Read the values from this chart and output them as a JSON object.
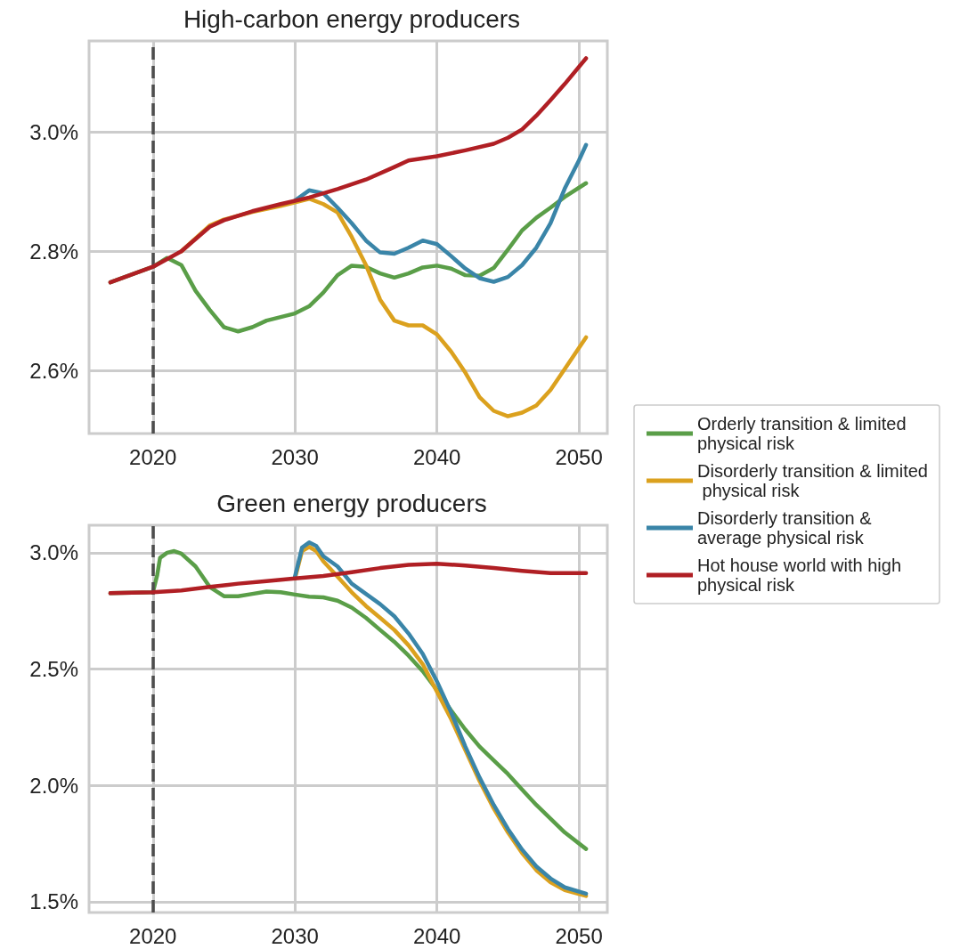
{
  "chart_data": [
    {
      "type": "line",
      "title": "High-carbon energy producers",
      "xlim": [
        2015.5,
        2052
      ],
      "xticks": [
        2020,
        2030,
        2040,
        2050
      ],
      "ylim": [
        2.495,
        3.152
      ],
      "yticks": [
        {
          "value": 2.6,
          "label": "2.6%"
        },
        {
          "value": 2.8,
          "label": "2.8%"
        },
        {
          "value": 3.0,
          "label": "3.0%"
        }
      ],
      "grid": true,
      "legend": false,
      "marker": "none",
      "line_style": "solid",
      "ref_lines": [
        {
          "axis": "x",
          "value": 2020,
          "line_style": "dashed",
          "color": "#4d4d4d"
        }
      ],
      "series": [
        {
          "color": "#5a9e48",
          "x": [
            2017,
            2020,
            2021,
            2022,
            2023,
            2024,
            2025,
            2026,
            2027,
            2028,
            2029,
            2030,
            2031,
            2032,
            2033,
            2034,
            2035,
            2036,
            2037,
            2038,
            2039,
            2040,
            2041,
            2042,
            2043,
            2044,
            2045,
            2046,
            2047,
            2048,
            2049,
            2050.5
          ],
          "values": [
            2.748,
            2.774,
            2.789,
            2.777,
            2.734,
            2.702,
            2.673,
            2.666,
            2.673,
            2.684,
            2.69,
            2.696,
            2.708,
            2.731,
            2.76,
            2.776,
            2.774,
            2.763,
            2.756,
            2.763,
            2.773,
            2.776,
            2.771,
            2.76,
            2.759,
            2.772,
            2.803,
            2.835,
            2.856,
            2.873,
            2.891,
            2.914
          ]
        },
        {
          "color": "#dba11e",
          "x": [
            2022,
            2024,
            2025,
            2027,
            2029,
            2030,
            2031,
            2032,
            2033,
            2034,
            2035,
            2036,
            2037,
            2038,
            2039,
            2040,
            2041,
            2042,
            2043,
            2044,
            2045,
            2046,
            2047,
            2048,
            2049,
            2050.5
          ],
          "values": [
            2.8,
            2.843,
            2.853,
            2.866,
            2.876,
            2.882,
            2.888,
            2.879,
            2.865,
            2.824,
            2.777,
            2.719,
            2.684,
            2.676,
            2.676,
            2.661,
            2.632,
            2.597,
            2.556,
            2.533,
            2.524,
            2.53,
            2.542,
            2.568,
            2.603,
            2.656
          ]
        },
        {
          "color": "#3a85a8",
          "x": [
            2030,
            2031,
            2032,
            2033,
            2034,
            2035,
            2036,
            2037,
            2038,
            2039,
            2040,
            2041,
            2042,
            2043,
            2044,
            2045,
            2046,
            2047,
            2048,
            2049,
            2050,
            2050.5
          ],
          "values": [
            2.885,
            2.902,
            2.897,
            2.873,
            2.847,
            2.818,
            2.798,
            2.796,
            2.806,
            2.818,
            2.812,
            2.792,
            2.771,
            2.755,
            2.749,
            2.757,
            2.777,
            2.806,
            2.847,
            2.905,
            2.952,
            2.978
          ]
        },
        {
          "color": "#b01f24",
          "x": [
            2017,
            2020,
            2022,
            2024,
            2025,
            2027,
            2029,
            2031,
            2033,
            2035,
            2037,
            2038,
            2040,
            2042,
            2044,
            2045,
            2046,
            2047,
            2048,
            2049,
            2050.5
          ],
          "values": [
            2.748,
            2.774,
            2.8,
            2.841,
            2.852,
            2.867,
            2.879,
            2.89,
            2.904,
            2.92,
            2.941,
            2.952,
            2.959,
            2.969,
            2.98,
            2.99,
            3.004,
            3.027,
            3.053,
            3.08,
            3.123
          ]
        }
      ]
    },
    {
      "type": "line",
      "title": "Green energy producers",
      "xlim": [
        2015.5,
        2052
      ],
      "xticks": [
        2020,
        2030,
        2040,
        2050
      ],
      "ylim": [
        1.454,
        3.118
      ],
      "yticks": [
        {
          "value": 1.5,
          "label": "1.5%"
        },
        {
          "value": 2.0,
          "label": "2.0%"
        },
        {
          "value": 2.5,
          "label": "2.5%"
        },
        {
          "value": 3.0,
          "label": "3.0%"
        }
      ],
      "grid": true,
      "legend": "right",
      "marker": "none",
      "line_style": "solid",
      "ref_lines": [
        {
          "axis": "x",
          "value": 2020,
          "line_style": "dashed",
          "color": "#4d4d4d"
        }
      ],
      "series": [
        {
          "name": "Orderly transition & limited physical risk",
          "color": "#5a9e48",
          "x": [
            2017,
            2020,
            2020.3,
            2020.5,
            2021,
            2021.5,
            2022,
            2023,
            2024,
            2025,
            2026,
            2027,
            2028,
            2029,
            2030,
            2031,
            2032,
            2033,
            2034,
            2035,
            2036,
            2037,
            2038,
            2039,
            2040,
            2041,
            2042,
            2043,
            2044,
            2045,
            2046,
            2047,
            2048,
            2049,
            2050.5
          ],
          "values": [
            2.826,
            2.83,
            2.904,
            2.978,
            3.0,
            3.007,
            2.996,
            2.941,
            2.853,
            2.813,
            2.813,
            2.823,
            2.833,
            2.83,
            2.82,
            2.811,
            2.808,
            2.794,
            2.764,
            2.72,
            2.668,
            2.617,
            2.558,
            2.491,
            2.41,
            2.322,
            2.24,
            2.167,
            2.108,
            2.049,
            1.982,
            1.916,
            1.857,
            1.798,
            1.727
          ]
        },
        {
          "name": "Disorderly transition & limited physical risk",
          "color": "#dba11e",
          "x": [
            2030,
            2030.5,
            2031,
            2031.5,
            2032,
            2033,
            2034,
            2035,
            2036,
            2037,
            2038,
            2039,
            2040,
            2041,
            2042,
            2043,
            2044,
            2045,
            2046,
            2047,
            2048,
            2049,
            2050.5
          ],
          "values": [
            2.889,
            3.007,
            3.025,
            3.007,
            2.963,
            2.897,
            2.83,
            2.771,
            2.72,
            2.668,
            2.602,
            2.521,
            2.403,
            2.285,
            2.152,
            2.019,
            1.901,
            1.798,
            1.709,
            1.636,
            1.584,
            1.55,
            1.525
          ]
        },
        {
          "name": "Disorderly transition & average physical risk",
          "color": "#3a85a8",
          "x": [
            2030,
            2030.5,
            2031,
            2031.5,
            2032,
            2033,
            2034,
            2035,
            2036,
            2037,
            2038,
            2039,
            2040,
            2041,
            2042,
            2043,
            2044,
            2045,
            2046,
            2047,
            2048,
            2049,
            2050.5
          ],
          "values": [
            2.897,
            3.022,
            3.044,
            3.029,
            2.985,
            2.941,
            2.867,
            2.823,
            2.779,
            2.727,
            2.653,
            2.565,
            2.447,
            2.314,
            2.167,
            2.034,
            1.916,
            1.813,
            1.724,
            1.652,
            1.6,
            1.562,
            1.535
          ]
        },
        {
          "name": "Hot house world with high physical risk",
          "color": "#b01f24",
          "x": [
            2017,
            2020,
            2022,
            2024,
            2026,
            2028,
            2030,
            2032,
            2034,
            2036,
            2038,
            2040,
            2042,
            2044,
            2046,
            2048,
            2050.5
          ],
          "values": [
            2.826,
            2.83,
            2.838,
            2.853,
            2.867,
            2.878,
            2.889,
            2.9,
            2.916,
            2.934,
            2.948,
            2.953,
            2.945,
            2.934,
            2.922,
            2.912,
            2.912
          ]
        }
      ]
    }
  ]
}
